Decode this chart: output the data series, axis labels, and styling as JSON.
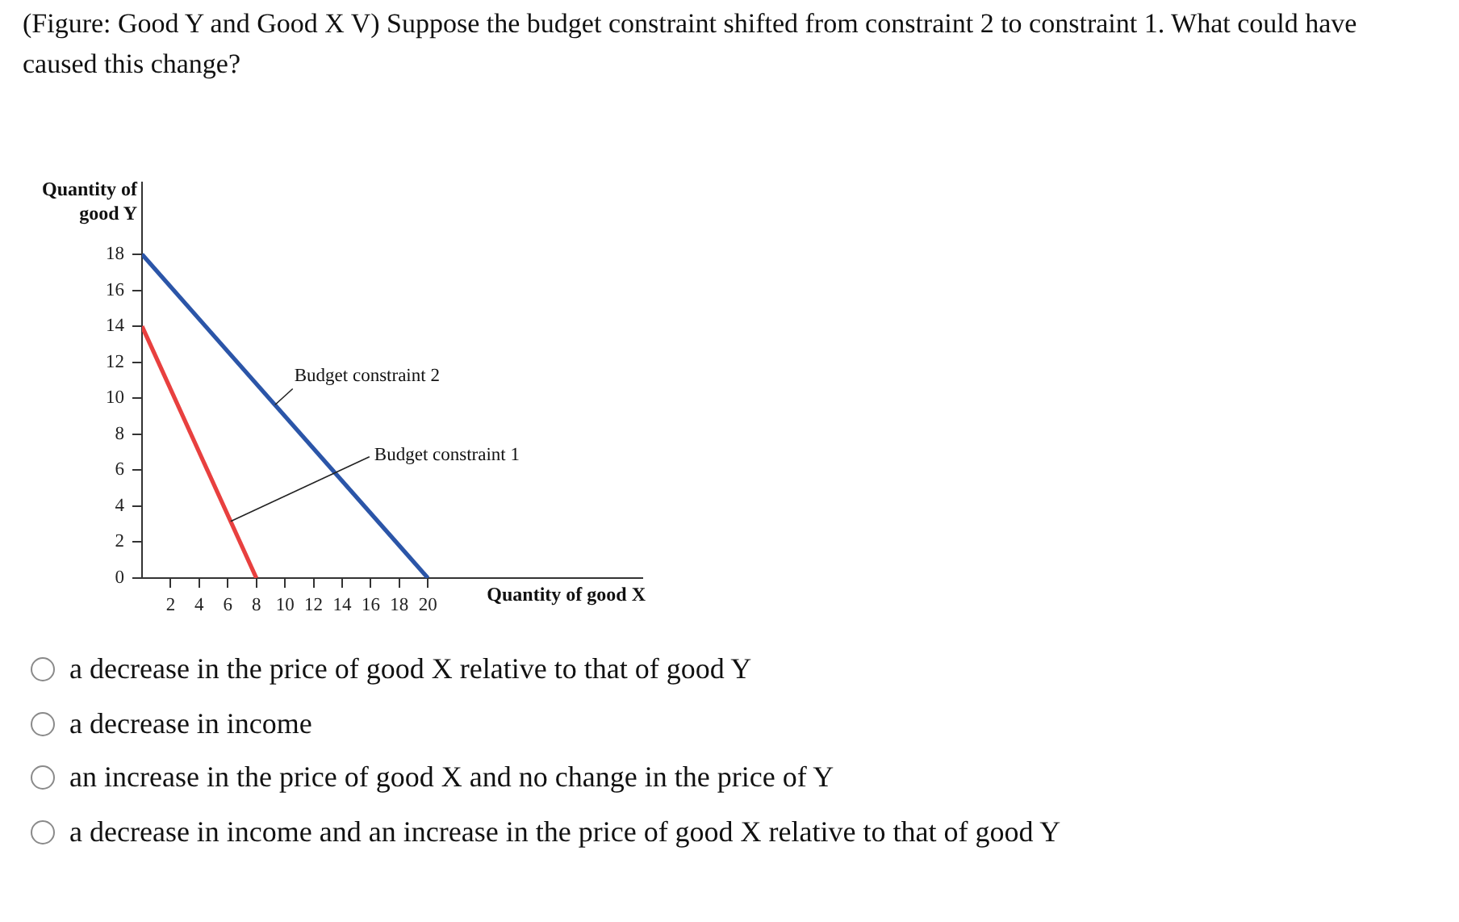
{
  "chart_data": {
    "type": "line",
    "title": "(Figure: Good Y and Good X V) Suppose the budget constraint shifted from constraint 2 to constraint 1. What could have caused this change?",
    "xlabel": "Quantity of good X",
    "ylabel": "Quantity of good Y",
    "series": [
      {
        "name": "Budget constraint 1",
        "color": "#e8403f",
        "x": [
          0,
          8
        ],
        "values": [
          14,
          0
        ]
      },
      {
        "name": "Budget constraint 2",
        "color": "#2b55a8",
        "x": [
          0,
          20
        ],
        "values": [
          18,
          0
        ]
      }
    ],
    "xlim": [
      0,
      35
    ],
    "xticks": [
      2,
      4,
      6,
      8,
      10,
      12,
      14,
      16,
      18,
      20
    ],
    "ylim": [
      0,
      22
    ],
    "yticks": [
      0,
      2,
      4,
      6,
      8,
      10,
      12,
      14,
      16,
      18
    ],
    "grid": false,
    "legend": false,
    "annotations": [
      "a decrease in the price of good X relative to that of good Y",
      "a decrease in income",
      "an increase in the price of good X and no change in the price of Y",
      "a decrease in income and an increase in the price of good X relative to that of good Y"
    ]
  }
}
